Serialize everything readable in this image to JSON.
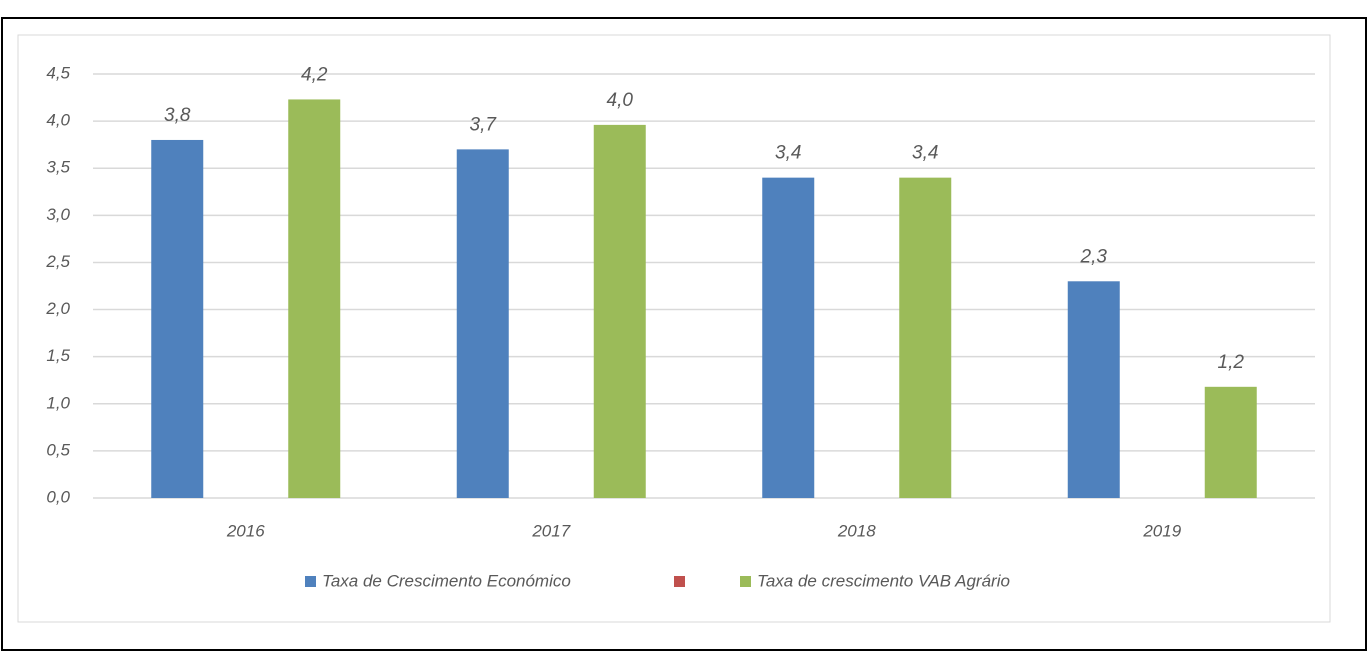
{
  "chart_data": {
    "type": "bar",
    "categories": [
      "2016",
      "2017",
      "2018",
      "2019"
    ],
    "series": [
      {
        "name": "Taxa de Crescimento Económico",
        "color": "#4f81bd",
        "values": [
          3.8,
          3.7,
          3.4,
          2.3
        ],
        "value_labels": [
          "3,8",
          "3,7",
          "3,4",
          "2,3"
        ]
      },
      {
        "color": "#c0504d",
        "values": [
          null,
          null,
          null,
          null
        ]
      },
      {
        "name": "Taxa de crescimento VAB Agrário",
        "color": "#9bbb59",
        "values": [
          4.23,
          3.96,
          3.4,
          1.18
        ],
        "value_labels": [
          "4,2",
          "4,0",
          "3,4",
          "1,2"
        ]
      }
    ],
    "ylim": [
      0,
      4.5
    ],
    "yticks": [
      {
        "value": 0,
        "label": "0,0"
      },
      {
        "value": 0.5,
        "label": "0,5"
      },
      {
        "value": 1,
        "label": "1,0"
      },
      {
        "value": 1.5,
        "label": "1,5"
      },
      {
        "value": 2,
        "label": "2,0"
      },
      {
        "value": 2.5,
        "label": "2,5"
      },
      {
        "value": 3,
        "label": "3,0"
      },
      {
        "value": 3.5,
        "label": "3,5"
      },
      {
        "value": 4,
        "label": "4,0"
      },
      {
        "value": 4.5,
        "label": "4,5"
      }
    ],
    "grid": true,
    "legend": "bottom"
  }
}
